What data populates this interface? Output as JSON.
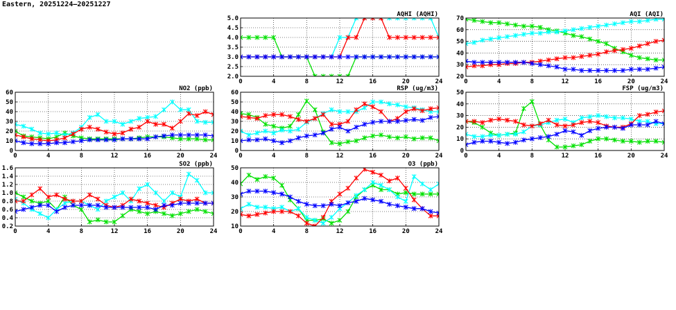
{
  "page": {
    "title": "Eastern, 20251224–20251227"
  },
  "colors": {
    "green": "#00e000",
    "cyan": "#00ffff",
    "red": "#ff0000",
    "blue": "#0000ff"
  },
  "chart_data": [
    {
      "id": "no2",
      "type": "line",
      "title": "NO2 (ppb)",
      "xlim": [
        0,
        24
      ],
      "xticks": [
        "0",
        "4",
        "8",
        "12",
        "16",
        "20",
        "24"
      ],
      "ylim": [
        0,
        60
      ],
      "yticks": [
        "0",
        "10",
        "20",
        "30",
        "40",
        "50",
        "60"
      ],
      "x": [
        0,
        1,
        2,
        3,
        4,
        5,
        6,
        7,
        8,
        9,
        10,
        11,
        12,
        13,
        14,
        15,
        16,
        17,
        18,
        19,
        20,
        21,
        22,
        23,
        24
      ],
      "series": [
        {
          "color": "green",
          "values": [
            20,
            15,
            14,
            13,
            12,
            14,
            18,
            15,
            13,
            12,
            12,
            12,
            12,
            12,
            12,
            13,
            14,
            14,
            14,
            13,
            12,
            12,
            12,
            11,
            11
          ]
        },
        {
          "color": "cyan",
          "values": [
            27,
            25,
            22,
            18,
            17,
            18,
            16,
            18,
            24,
            34,
            37,
            30,
            30,
            27,
            30,
            33,
            34,
            35,
            42,
            50,
            42,
            42,
            30,
            29,
            29
          ]
        },
        {
          "color": "red",
          "values": [
            16,
            14,
            12,
            11,
            10,
            11,
            13,
            17,
            22,
            24,
            22,
            19,
            17,
            18,
            22,
            24,
            30,
            27,
            27,
            23,
            30,
            38,
            36,
            40,
            37
          ]
        },
        {
          "color": "blue",
          "values": [
            10,
            8,
            7,
            7,
            7,
            8,
            8,
            9,
            10,
            11,
            11,
            11,
            11,
            12,
            12,
            12,
            12,
            14,
            15,
            16,
            16,
            16,
            16,
            16,
            15
          ]
        }
      ]
    },
    {
      "id": "so2",
      "type": "line",
      "title": "SO2 (ppb)",
      "xlim": [
        0,
        24
      ],
      "xticks": [
        "0",
        "4",
        "8",
        "12",
        "16",
        "20",
        "24"
      ],
      "ylim": [
        0.2,
        1.6
      ],
      "yticks": [
        "0.2",
        "0.4",
        "0.6",
        "0.8",
        "1.0",
        "1.2",
        "1.4",
        "1.6"
      ],
      "x": [
        0,
        1,
        2,
        3,
        4,
        5,
        6,
        7,
        8,
        9,
        10,
        11,
        12,
        13,
        14,
        15,
        16,
        17,
        18,
        19,
        20,
        21,
        22,
        23,
        24
      ],
      "series": [
        {
          "color": "green",
          "values": [
            1.0,
            0.9,
            0.8,
            0.75,
            0.8,
            0.6,
            0.9,
            0.7,
            0.6,
            0.3,
            0.35,
            0.3,
            0.3,
            0.45,
            0.6,
            0.55,
            0.5,
            0.55,
            0.5,
            0.45,
            0.5,
            0.55,
            0.6,
            0.55,
            0.5
          ]
        },
        {
          "color": "cyan",
          "values": [
            0.85,
            0.75,
            0.6,
            0.5,
            0.4,
            0.6,
            0.75,
            0.8,
            0.8,
            0.7,
            0.6,
            0.8,
            0.9,
            1.0,
            0.8,
            1.1,
            1.2,
            1.0,
            0.8,
            1.0,
            0.9,
            1.45,
            1.3,
            1.0,
            1.0
          ]
        },
        {
          "color": "red",
          "values": [
            0.8,
            0.8,
            0.95,
            1.1,
            0.9,
            0.95,
            0.85,
            0.8,
            0.8,
            0.95,
            0.85,
            0.7,
            0.65,
            0.7,
            0.85,
            0.8,
            0.75,
            0.7,
            0.65,
            0.75,
            0.85,
            0.8,
            0.85,
            0.75,
            0.75
          ]
        },
        {
          "color": "blue",
          "values": [
            0.55,
            0.6,
            0.65,
            0.7,
            0.7,
            0.55,
            0.65,
            0.7,
            0.7,
            0.7,
            0.7,
            0.65,
            0.65,
            0.65,
            0.65,
            0.65,
            0.65,
            0.6,
            0.7,
            0.7,
            0.75,
            0.75,
            0.75,
            0.75,
            0.75
          ]
        }
      ]
    },
    {
      "id": "aqhi",
      "type": "line",
      "title": "AQHI (AQHI)",
      "xlim": [
        0,
        24
      ],
      "xticks": [
        "0",
        "4",
        "8",
        "12",
        "16",
        "20",
        "24"
      ],
      "ylim": [
        2.0,
        5.0
      ],
      "yticks": [
        "2.0",
        "2.5",
        "3.0",
        "3.5",
        "4.0",
        "4.5",
        "5.0"
      ],
      "x": [
        0,
        1,
        2,
        3,
        4,
        5,
        6,
        7,
        8,
        9,
        10,
        11,
        12,
        13,
        14,
        15,
        16,
        17,
        18,
        19,
        20,
        21,
        22,
        23,
        24
      ],
      "series": [
        {
          "color": "green",
          "values": [
            4,
            4,
            4,
            4,
            4,
            3,
            3,
            3,
            3,
            2,
            2,
            2,
            2,
            2,
            3,
            3,
            3,
            3,
            3,
            3,
            3,
            3,
            3,
            3,
            3
          ]
        },
        {
          "color": "cyan",
          "values": [
            3,
            3,
            3,
            3,
            3,
            3,
            3,
            3,
            3,
            3,
            3,
            3,
            4,
            4,
            5,
            5,
            5,
            5,
            5,
            5,
            5,
            5,
            5,
            5,
            4
          ]
        },
        {
          "color": "red",
          "values": [
            3,
            3,
            3,
            3,
            3,
            3,
            3,
            3,
            3,
            3,
            3,
            3,
            3,
            4,
            4,
            5,
            5,
            5,
            4,
            4,
            4,
            4,
            4,
            4,
            4
          ]
        },
        {
          "color": "blue",
          "values": [
            3,
            3,
            3,
            3,
            3,
            3,
            3,
            3,
            3,
            3,
            3,
            3,
            3,
            3,
            3,
            3,
            3,
            3,
            3,
            3,
            3,
            3,
            3,
            3,
            3
          ]
        }
      ]
    },
    {
      "id": "rsp",
      "type": "line",
      "title": "RSP (ug/m3)",
      "xlim": [
        0,
        24
      ],
      "xticks": [
        "0",
        "4",
        "8",
        "12",
        "16",
        "20",
        "24"
      ],
      "ylim": [
        0,
        60
      ],
      "yticks": [
        "0",
        "10",
        "20",
        "30",
        "40",
        "50",
        "60"
      ],
      "x": [
        0,
        1,
        2,
        3,
        4,
        5,
        6,
        7,
        8,
        9,
        10,
        11,
        12,
        13,
        14,
        15,
        16,
        17,
        18,
        19,
        20,
        21,
        22,
        23,
        24
      ],
      "series": [
        {
          "color": "green",
          "values": [
            38,
            37,
            34,
            27,
            25,
            23,
            25,
            37,
            51,
            42,
            19,
            8,
            7,
            9,
            10,
            13,
            15,
            16,
            14,
            13,
            14,
            12,
            13,
            13,
            10
          ]
        },
        {
          "color": "cyan",
          "values": [
            20,
            16,
            18,
            20,
            18,
            21,
            20,
            22,
            29,
            33,
            38,
            42,
            40,
            40,
            40,
            44,
            50,
            50,
            48,
            47,
            45,
            44,
            42,
            40,
            40
          ]
        },
        {
          "color": "red",
          "values": [
            35,
            34,
            33,
            36,
            37,
            37,
            35,
            32,
            30,
            33,
            37,
            27,
            27,
            30,
            42,
            48,
            45,
            40,
            30,
            33,
            40,
            43,
            41,
            43,
            44
          ]
        },
        {
          "color": "blue",
          "values": [
            10,
            11,
            11,
            12,
            10,
            8,
            10,
            13,
            15,
            16,
            18,
            22,
            24,
            20,
            24,
            27,
            29,
            30,
            30,
            30,
            31,
            32,
            31,
            34,
            35
          ]
        }
      ]
    },
    {
      "id": "o3",
      "type": "line",
      "title": "O3 (ppb)",
      "xlim": [
        0,
        24
      ],
      "xticks": [
        "0",
        "4",
        "8",
        "12",
        "16",
        "20",
        "24"
      ],
      "ylim": [
        10,
        50
      ],
      "yticks": [
        "10",
        "20",
        "30",
        "40",
        "50"
      ],
      "x": [
        0,
        1,
        2,
        3,
        4,
        5,
        6,
        7,
        8,
        9,
        10,
        11,
        12,
        13,
        14,
        15,
        16,
        17,
        18,
        19,
        20,
        21,
        22,
        23,
        24
      ],
      "series": [
        {
          "color": "green",
          "values": [
            39,
            45,
            42,
            44,
            43,
            38,
            28,
            22,
            14,
            14,
            15,
            12,
            14,
            20,
            30,
            35,
            38,
            35,
            35,
            32,
            33,
            32,
            32,
            32,
            32
          ]
        },
        {
          "color": "cyan",
          "values": [
            22,
            25,
            23,
            23,
            22,
            23,
            20,
            22,
            16,
            14,
            12,
            16,
            22,
            26,
            31,
            35,
            40,
            38,
            35,
            30,
            27,
            44,
            39,
            35,
            39
          ]
        },
        {
          "color": "red",
          "values": [
            18,
            17,
            18,
            19,
            20,
            20,
            20,
            17,
            12,
            10,
            16,
            27,
            32,
            36,
            43,
            49,
            47,
            45,
            41,
            43,
            36,
            28,
            22,
            17,
            17
          ]
        },
        {
          "color": "blue",
          "values": [
            32,
            34,
            34,
            34,
            33,
            32,
            30,
            27,
            25,
            24,
            24,
            25,
            24,
            26,
            27,
            29,
            28,
            27,
            25,
            24,
            23,
            22,
            22,
            20,
            19
          ]
        }
      ]
    },
    {
      "id": "aqi",
      "type": "line",
      "title": "AQI (AQI)",
      "xlim": [
        0,
        24
      ],
      "xticks": [
        "0",
        "4",
        "8",
        "12",
        "16",
        "20",
        "24"
      ],
      "ylim": [
        20,
        70
      ],
      "yticks": [
        "20",
        "30",
        "40",
        "50",
        "60",
        "70"
      ],
      "x": [
        0,
        1,
        2,
        3,
        4,
        5,
        6,
        7,
        8,
        9,
        10,
        11,
        12,
        13,
        14,
        15,
        16,
        17,
        18,
        19,
        20,
        21,
        22,
        23,
        24
      ],
      "series": [
        {
          "color": "green",
          "values": [
            69,
            68,
            67,
            66,
            66,
            65,
            64,
            63,
            63,
            62,
            60,
            59,
            57,
            55,
            54,
            52,
            50,
            48,
            44,
            41,
            38,
            36,
            35,
            34,
            34
          ]
        },
        {
          "color": "cyan",
          "values": [
            48,
            49,
            51,
            52,
            53,
            54,
            55,
            56,
            57,
            57,
            58,
            58,
            59,
            60,
            61,
            62,
            63,
            64,
            65,
            66,
            67,
            67,
            68,
            69,
            69
          ]
        },
        {
          "color": "red",
          "values": [
            28,
            29,
            29,
            30,
            30,
            31,
            31,
            32,
            32,
            33,
            34,
            35,
            36,
            36,
            37,
            38,
            39,
            41,
            42,
            43,
            44,
            46,
            48,
            50,
            51
          ]
        },
        {
          "color": "blue",
          "values": [
            33,
            32,
            32,
            32,
            32,
            32,
            32,
            32,
            31,
            30,
            29,
            28,
            26,
            26,
            25,
            25,
            25,
            25,
            25,
            25,
            26,
            26,
            26,
            27,
            28
          ]
        }
      ]
    },
    {
      "id": "fsp",
      "type": "line",
      "title": "FSP (ug/m3)",
      "xlim": [
        0,
        24
      ],
      "xticks": [
        "0",
        "4",
        "8",
        "12",
        "16",
        "20",
        "24"
      ],
      "ylim": [
        0,
        50
      ],
      "yticks": [
        "0",
        "10",
        "20",
        "30",
        "40",
        "50"
      ],
      "x": [
        0,
        1,
        2,
        3,
        4,
        5,
        6,
        7,
        8,
        9,
        10,
        11,
        12,
        13,
        14,
        15,
        16,
        17,
        18,
        19,
        20,
        21,
        22,
        23,
        24
      ],
      "series": [
        {
          "color": "green",
          "values": [
            25,
            24,
            20,
            15,
            13,
            14,
            15,
            36,
            42,
            22,
            9,
            3,
            3,
            4,
            5,
            8,
            10,
            10,
            9,
            8,
            8,
            7,
            8,
            8,
            7
          ]
        },
        {
          "color": "cyan",
          "values": [
            14,
            12,
            12,
            13,
            13,
            14,
            14,
            16,
            21,
            22,
            24,
            26,
            27,
            24,
            28,
            29,
            30,
            29,
            28,
            28,
            27,
            25,
            25,
            23,
            23
          ]
        },
        {
          "color": "red",
          "values": [
            25,
            25,
            24,
            26,
            27,
            26,
            25,
            22,
            21,
            23,
            26,
            22,
            21,
            22,
            24,
            25,
            24,
            21,
            20,
            20,
            23,
            30,
            31,
            33,
            34
          ]
        },
        {
          "color": "blue",
          "values": [
            5,
            7,
            8,
            8,
            7,
            6,
            7,
            9,
            10,
            11,
            12,
            14,
            17,
            16,
            13,
            17,
            19,
            20,
            20,
            19,
            22,
            22,
            22,
            25,
            23
          ]
        }
      ]
    }
  ]
}
